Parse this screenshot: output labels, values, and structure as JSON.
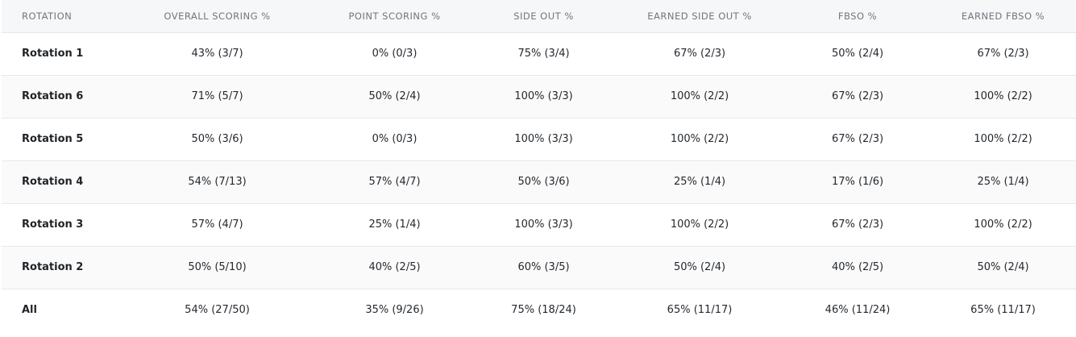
{
  "table": {
    "headers": [
      "ROTATION",
      "OVERALL SCORING %",
      "POINT SCORING %",
      "SIDE OUT %",
      "EARNED SIDE OUT %",
      "FBSO %",
      "EARNED FBSO %"
    ],
    "rows": [
      [
        "Rotation 1",
        "43% (3/7)",
        "0% (0/3)",
        "75% (3/4)",
        "67% (2/3)",
        "50% (2/4)",
        "67% (2/3)"
      ],
      [
        "Rotation 6",
        "71% (5/7)",
        "50% (2/4)",
        "100% (3/3)",
        "100% (2/2)",
        "67% (2/3)",
        "100% (2/2)"
      ],
      [
        "Rotation 5",
        "50% (3/6)",
        "0% (0/3)",
        "100% (3/3)",
        "100% (2/2)",
        "67% (2/3)",
        "100% (2/2)"
      ],
      [
        "Rotation 4",
        "54% (7/13)",
        "57% (4/7)",
        "50% (3/6)",
        "25% (1/4)",
        "17% (1/6)",
        "25% (1/4)"
      ],
      [
        "Rotation 3",
        "57% (4/7)",
        "25% (1/4)",
        "100% (3/3)",
        "100% (2/2)",
        "67% (2/3)",
        "100% (2/2)"
      ],
      [
        "Rotation 2",
        "50% (5/10)",
        "40% (2/5)",
        "60% (3/5)",
        "50% (2/4)",
        "40% (2/5)",
        "50% (2/4)"
      ],
      [
        "All",
        "54% (27/50)",
        "35% (9/26)",
        "75% (18/24)",
        "65% (11/17)",
        "46% (11/24)",
        "65% (11/17)"
      ]
    ]
  },
  "colors": {
    "header_bg": "#f6f7f8",
    "header_text": "#6e7781",
    "alt_row_bg": "#fafafa",
    "border": "#e6e8eb"
  }
}
